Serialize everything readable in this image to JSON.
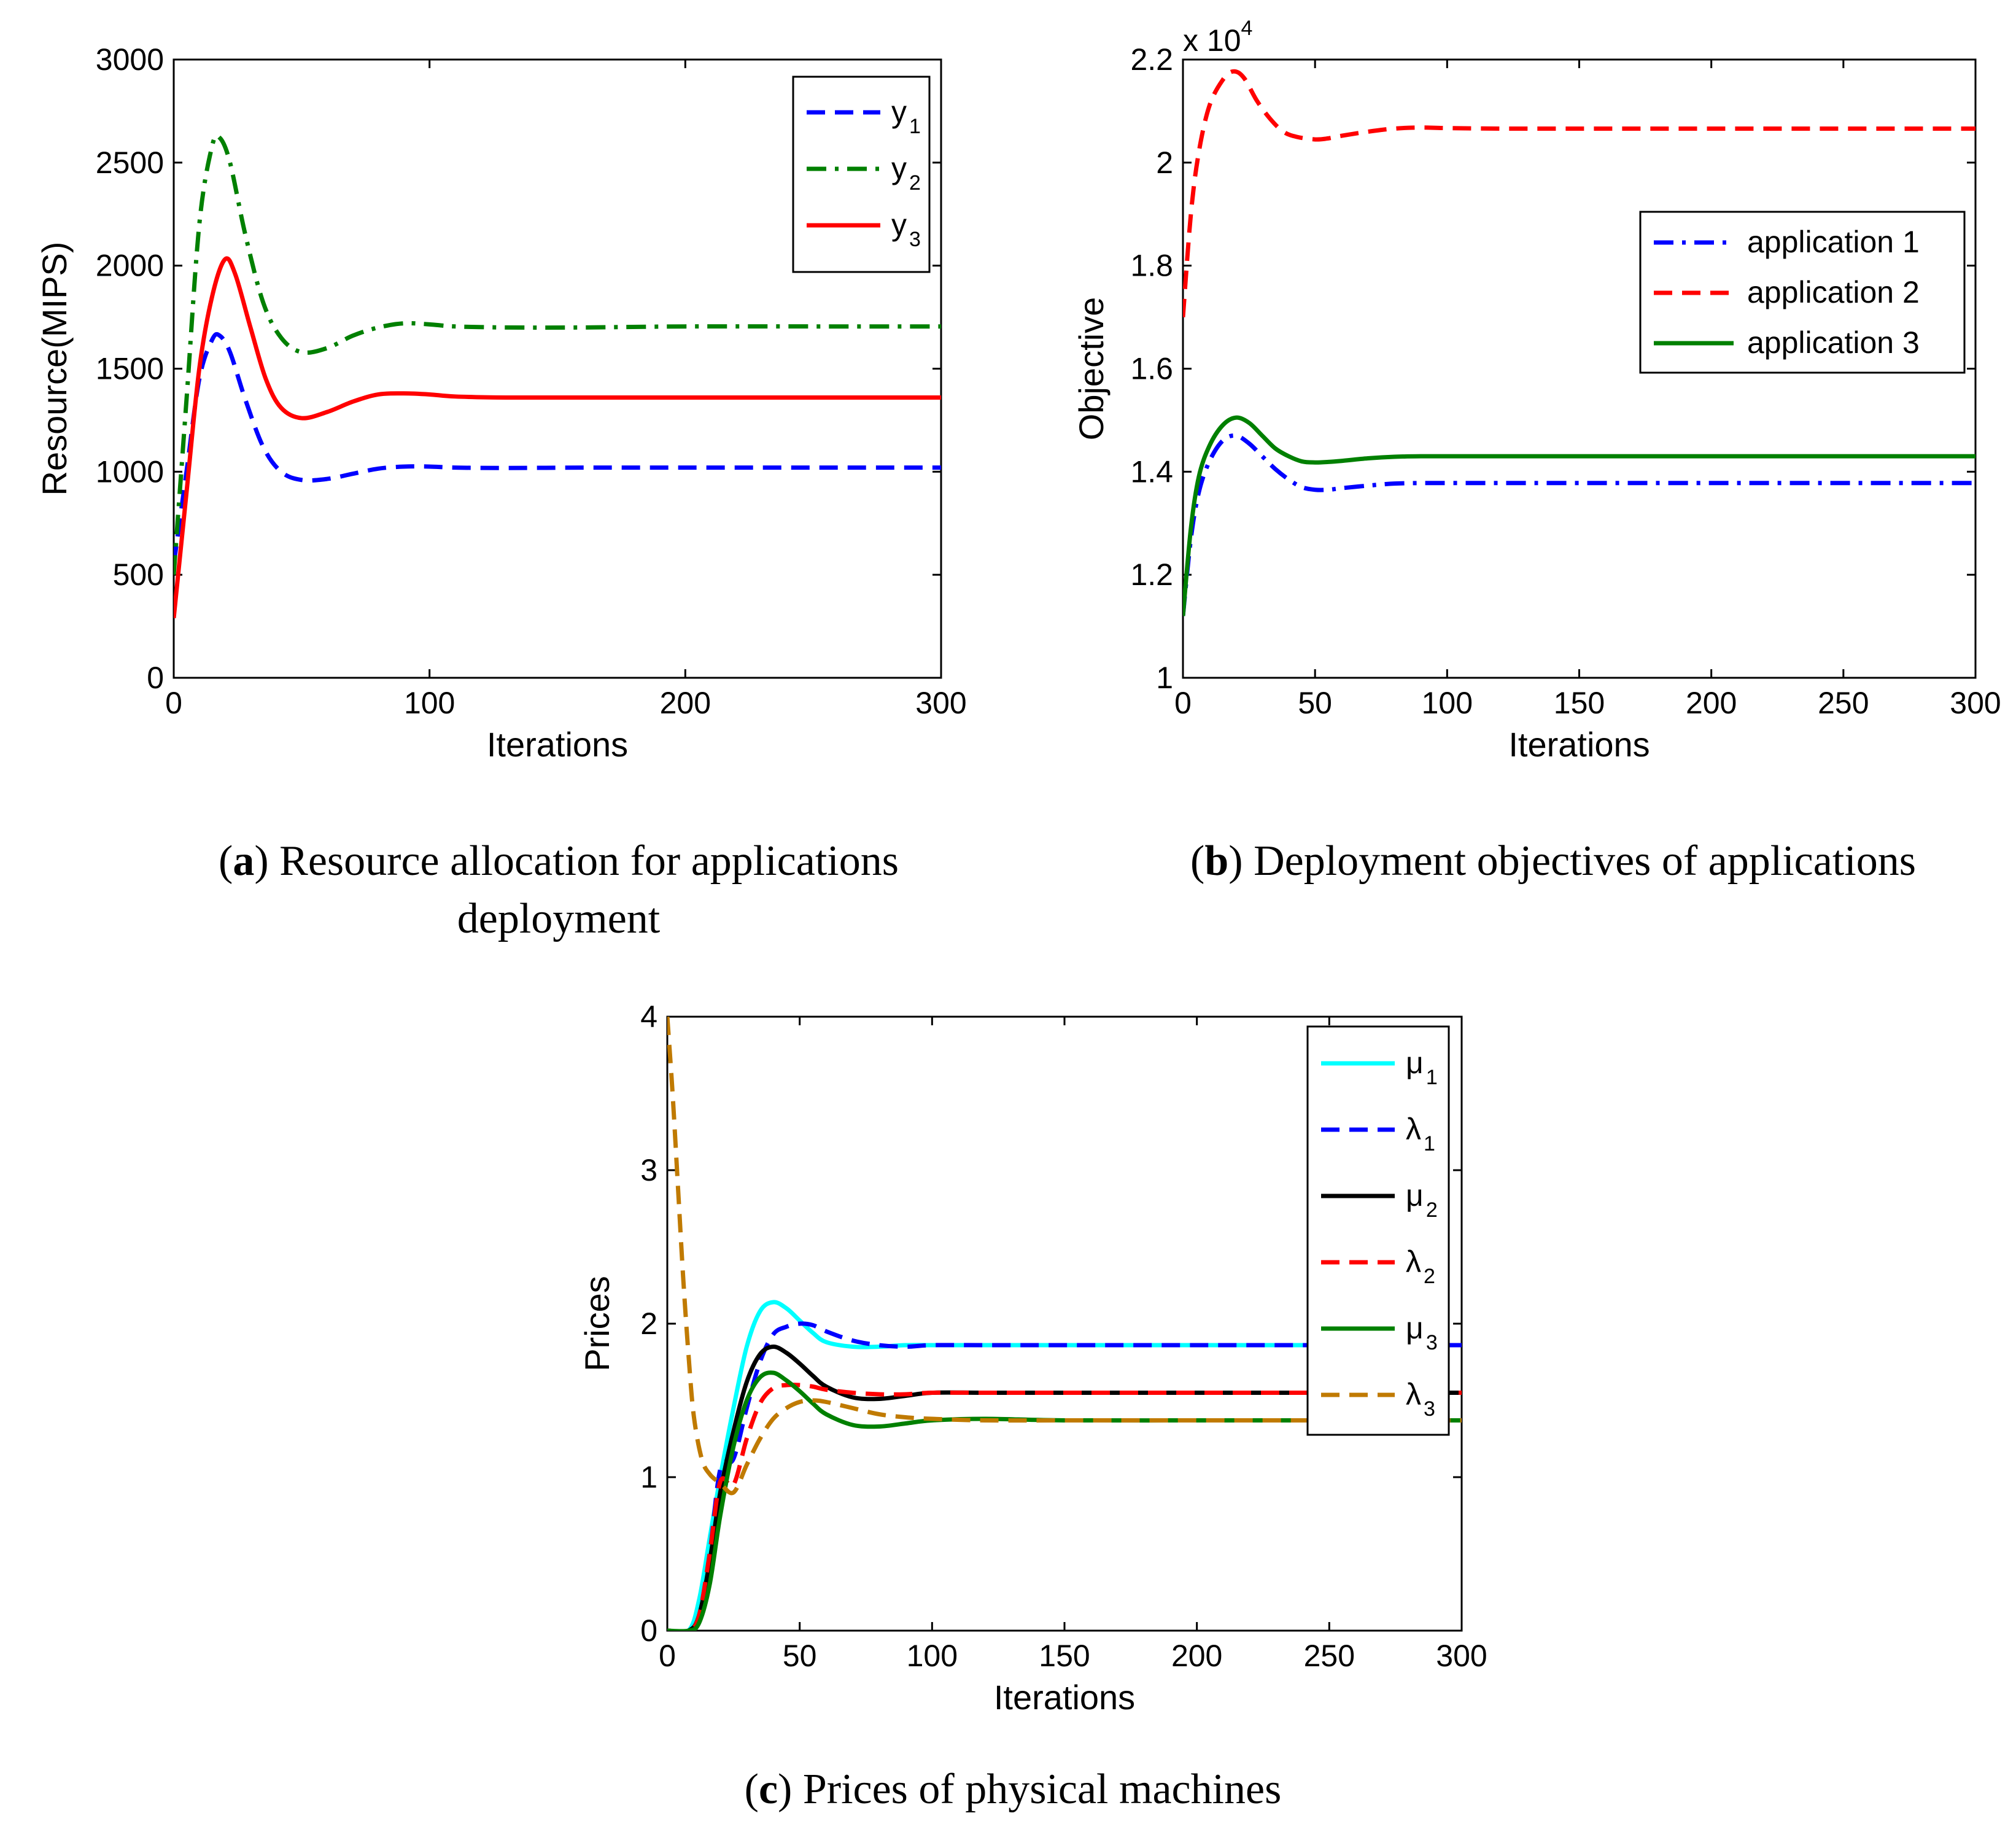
{
  "chart_data": [
    {
      "id": "a",
      "type": "line",
      "xlabel": "Iterations",
      "ylabel": "Resource(MIPS)",
      "xlim": [
        0,
        300
      ],
      "ylim": [
        0,
        3000
      ],
      "xticks": [
        0,
        100,
        200,
        300
      ],
      "yticks": [
        0,
        500,
        1000,
        1500,
        2000,
        2500,
        3000
      ],
      "legend_position": "top-right",
      "series": [
        {
          "name": "y",
          "sub": "1",
          "color": "#0000ff",
          "dash": "dashed",
          "x": [
            0,
            5,
            10,
            15,
            18,
            22,
            28,
            35,
            42,
            50,
            60,
            70,
            80,
            90,
            100,
            110,
            130,
            160,
            200,
            250,
            300
          ],
          "y": [
            550,
            1000,
            1450,
            1640,
            1660,
            1580,
            1350,
            1120,
            1000,
            960,
            965,
            990,
            1015,
            1025,
            1025,
            1020,
            1018,
            1020,
            1020,
            1020,
            1020
          ]
        },
        {
          "name": "y",
          "sub": "2",
          "color": "#008000",
          "dash": "dashdot",
          "x": [
            0,
            5,
            10,
            15,
            18,
            22,
            28,
            35,
            42,
            50,
            60,
            70,
            80,
            90,
            100,
            110,
            130,
            160,
            200,
            250,
            300
          ],
          "y": [
            500,
            1350,
            2200,
            2580,
            2620,
            2500,
            2150,
            1820,
            1650,
            1580,
            1600,
            1660,
            1700,
            1720,
            1715,
            1705,
            1700,
            1700,
            1705,
            1705,
            1705
          ]
        },
        {
          "name": "y",
          "sub": "3",
          "color": "#ff0000",
          "dash": "solid",
          "x": [
            0,
            5,
            10,
            15,
            20,
            24,
            30,
            36,
            42,
            50,
            60,
            70,
            80,
            90,
            100,
            110,
            130,
            160,
            200,
            250,
            300
          ],
          "y": [
            290,
            900,
            1500,
            1850,
            2030,
            1960,
            1700,
            1450,
            1310,
            1260,
            1290,
            1340,
            1375,
            1380,
            1375,
            1365,
            1360,
            1360,
            1360,
            1360,
            1360
          ]
        }
      ]
    },
    {
      "id": "b",
      "type": "line",
      "xlabel": "Iterations",
      "ylabel": "Objective",
      "exponent_base": "x 10",
      "exponent_power": "4",
      "xlim": [
        0,
        300
      ],
      "ylim": [
        1,
        2.2
      ],
      "xticks": [
        0,
        50,
        100,
        150,
        200,
        250,
        300
      ],
      "yticks": [
        1,
        1.2,
        1.4,
        1.6,
        1.8,
        2,
        2.2
      ],
      "legend_position": "upper-right",
      "series": [
        {
          "name": "application 1",
          "color": "#0000ff",
          "dash": "dashdot",
          "x": [
            0,
            3,
            6,
            10,
            15,
            20,
            25,
            30,
            35,
            40,
            45,
            50,
            55,
            60,
            70,
            80,
            90,
            100,
            120,
            150,
            200,
            250,
            300
          ],
          "y": [
            1.12,
            1.27,
            1.36,
            1.42,
            1.46,
            1.47,
            1.455,
            1.43,
            1.405,
            1.385,
            1.37,
            1.365,
            1.365,
            1.368,
            1.373,
            1.377,
            1.378,
            1.378,
            1.378,
            1.378,
            1.378,
            1.378,
            1.378
          ]
        },
        {
          "name": "application 2",
          "color": "#ff0000",
          "dash": "dashed",
          "x": [
            0,
            3,
            6,
            10,
            15,
            19,
            23,
            28,
            33,
            38,
            43,
            50,
            55,
            60,
            70,
            80,
            90,
            100,
            120,
            150,
            200,
            250,
            300
          ],
          "y": [
            1.7,
            1.9,
            2.02,
            2.11,
            2.16,
            2.177,
            2.165,
            2.12,
            2.085,
            2.06,
            2.05,
            2.045,
            2.047,
            2.052,
            2.06,
            2.066,
            2.068,
            2.067,
            2.066,
            2.066,
            2.066,
            2.066,
            2.066
          ]
        },
        {
          "name": "application 3",
          "color": "#008000",
          "dash": "solid",
          "x": [
            0,
            3,
            6,
            10,
            15,
            20,
            25,
            30,
            35,
            40,
            45,
            50,
            55,
            60,
            70,
            80,
            90,
            100,
            120,
            150,
            200,
            250,
            300
          ],
          "y": [
            1.12,
            1.29,
            1.39,
            1.45,
            1.49,
            1.505,
            1.495,
            1.47,
            1.445,
            1.43,
            1.42,
            1.418,
            1.419,
            1.421,
            1.426,
            1.429,
            1.43,
            1.43,
            1.43,
            1.43,
            1.43,
            1.43,
            1.43
          ]
        }
      ]
    },
    {
      "id": "c",
      "type": "line",
      "xlabel": "Iterations",
      "ylabel": "Prices",
      "xlim": [
        0,
        300
      ],
      "ylim": [
        0,
        4
      ],
      "xticks": [
        0,
        50,
        100,
        150,
        200,
        250,
        300
      ],
      "yticks": [
        0,
        1,
        2,
        3,
        4
      ],
      "legend_position": "top-right",
      "series": [
        {
          "name": "μ",
          "sub": "1",
          "color": "#00ffff",
          "dash": "solid",
          "x": [
            0,
            8,
            12,
            16,
            20,
            25,
            30,
            35,
            40,
            45,
            50,
            55,
            60,
            70,
            80,
            90,
            100,
            120,
            150,
            200,
            250,
            300
          ],
          "y": [
            0,
            0,
            0.2,
            0.6,
            1.0,
            1.45,
            1.85,
            2.08,
            2.14,
            2.1,
            2.02,
            1.94,
            1.88,
            1.85,
            1.85,
            1.86,
            1.86,
            1.86,
            1.86,
            1.86,
            1.86,
            1.86
          ]
        },
        {
          "name": "λ",
          "sub": "1",
          "color": "#0000ff",
          "dash": "dashed",
          "x": [
            0,
            8,
            12,
            16,
            20,
            25,
            30,
            35,
            40,
            45,
            50,
            55,
            60,
            70,
            80,
            90,
            100,
            120,
            150,
            200,
            250,
            300
          ],
          "y": [
            0,
            0,
            0.1,
            0.5,
            1.05,
            1.12,
            1.45,
            1.75,
            1.93,
            1.98,
            2.0,
            1.99,
            1.95,
            1.89,
            1.86,
            1.85,
            1.86,
            1.86,
            1.86,
            1.86,
            1.86,
            1.86
          ]
        },
        {
          "name": "μ",
          "sub": "2",
          "color": "#000000",
          "dash": "solid",
          "x": [
            0,
            8,
            12,
            16,
            20,
            25,
            30,
            35,
            40,
            45,
            50,
            55,
            60,
            70,
            80,
            90,
            100,
            120,
            150,
            200,
            250,
            300
          ],
          "y": [
            0,
            0,
            0.1,
            0.45,
            0.9,
            1.3,
            1.62,
            1.8,
            1.85,
            1.81,
            1.74,
            1.66,
            1.59,
            1.52,
            1.51,
            1.53,
            1.55,
            1.55,
            1.55,
            1.55,
            1.55,
            1.55
          ]
        },
        {
          "name": "λ",
          "sub": "2",
          "color": "#ff0000",
          "dash": "dashed",
          "x": [
            0,
            8,
            12,
            16,
            20,
            25,
            30,
            35,
            40,
            45,
            50,
            55,
            60,
            70,
            80,
            90,
            100,
            120,
            150,
            200,
            250,
            300
          ],
          "y": [
            0,
            0,
            0.1,
            0.5,
            0.97,
            0.95,
            1.25,
            1.48,
            1.58,
            1.6,
            1.6,
            1.59,
            1.57,
            1.55,
            1.54,
            1.54,
            1.55,
            1.55,
            1.55,
            1.55,
            1.55,
            1.55
          ]
        },
        {
          "name": "μ",
          "sub": "3",
          "color": "#008000",
          "dash": "solid",
          "x": [
            0,
            8,
            12,
            16,
            20,
            25,
            30,
            35,
            40,
            45,
            50,
            55,
            60,
            70,
            80,
            90,
            100,
            120,
            150,
            200,
            250,
            300
          ],
          "y": [
            0,
            0,
            0.05,
            0.3,
            0.75,
            1.2,
            1.5,
            1.65,
            1.68,
            1.63,
            1.56,
            1.48,
            1.41,
            1.34,
            1.33,
            1.35,
            1.37,
            1.38,
            1.37,
            1.37,
            1.37,
            1.37
          ]
        },
        {
          "name": "λ",
          "sub": "3",
          "color": "#c07a00",
          "dash": "dashed",
          "x": [
            0,
            2,
            4,
            6,
            8,
            10,
            13,
            16,
            20,
            25,
            30,
            35,
            40,
            45,
            50,
            55,
            60,
            70,
            80,
            90,
            100,
            120,
            150,
            200,
            250,
            300
          ],
          "y": [
            4.0,
            3.5,
            2.9,
            2.3,
            1.8,
            1.4,
            1.12,
            1.02,
            0.96,
            0.9,
            1.08,
            1.25,
            1.38,
            1.45,
            1.49,
            1.5,
            1.49,
            1.45,
            1.41,
            1.39,
            1.38,
            1.37,
            1.37,
            1.37,
            1.37,
            1.37
          ]
        }
      ]
    }
  ],
  "captions": {
    "a": {
      "label": "a",
      "text": " Resource allocation for applications deployment"
    },
    "b": {
      "label": "b",
      "text": " Deployment objectives of applications"
    },
    "c": {
      "label": "c",
      "text": " Prices of physical machines"
    }
  }
}
